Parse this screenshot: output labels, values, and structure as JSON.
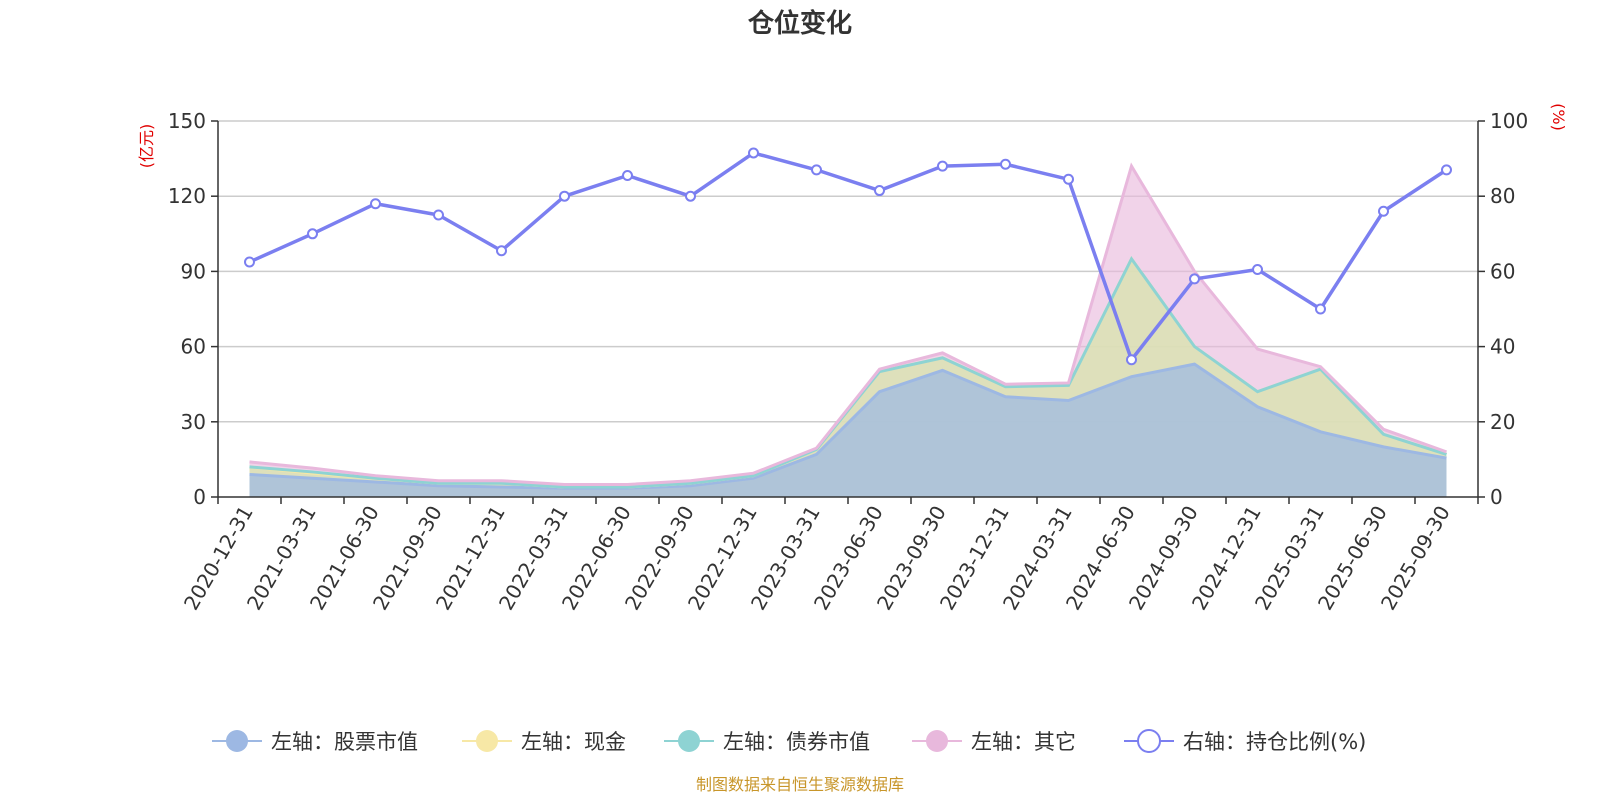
{
  "colors": {
    "stock": "#9db8e3",
    "cash": "#f7e8a6",
    "bond": "#8ed3d3",
    "other": "#e8b8dc",
    "ratio": "#7b7ff0",
    "grid": "#cccccc",
    "axis": "#333333",
    "unit": "#e00000",
    "source": "#c8962a"
  },
  "chart_data": {
    "type": "area",
    "title": "仓位变化",
    "left_unit": "(亿元)",
    "right_unit": "(%)",
    "left_ylim": [
      0,
      150
    ],
    "left_ticks": [
      0,
      30,
      60,
      90,
      120,
      150
    ],
    "right_ylim": [
      0,
      100
    ],
    "right_ticks": [
      0,
      20,
      40,
      60,
      80,
      100
    ],
    "categories": [
      "2020-12-31",
      "2021-03-31",
      "2021-06-30",
      "2021-09-30",
      "2021-12-31",
      "2022-03-31",
      "2022-06-30",
      "2022-09-30",
      "2022-12-31",
      "2023-03-31",
      "2023-06-30",
      "2023-09-30",
      "2023-12-31",
      "2024-03-31",
      "2024-06-30",
      "2024-09-30",
      "2024-12-31",
      "2025-03-31",
      "2025-06-30",
      "2025-09-30"
    ],
    "series": [
      {
        "name": "左轴：股票市值",
        "axis": "left",
        "kind": "stacked-area",
        "values": [
          9,
          7.5,
          6,
          4.5,
          4,
          3.5,
          3.5,
          4.5,
          7.5,
          17,
          42,
          50.5,
          40,
          38.5,
          48,
          53,
          36,
          26,
          20,
          15.5
        ]
      },
      {
        "name": "左轴：现金",
        "axis": "left",
        "kind": "stacked-area",
        "values": [
          3,
          2,
          1.5,
          1,
          1.5,
          0.5,
          0.5,
          1,
          1,
          2,
          8,
          5,
          4,
          6,
          47,
          7,
          6,
          25,
          5,
          1.5
        ]
      },
      {
        "name": "左轴：债券市值",
        "axis": "left",
        "kind": "stacked-area",
        "values": [
          0,
          0.5,
          0,
          0,
          0,
          0,
          0,
          0,
          0,
          0,
          0,
          0,
          0,
          0,
          0,
          0,
          0,
          0,
          0,
          0
        ]
      },
      {
        "name": "左轴：其它",
        "axis": "left",
        "kind": "stacked-area",
        "values": [
          2,
          1.5,
          1,
          1,
          1,
          1,
          1,
          1,
          1,
          0.5,
          1,
          2,
          1,
          1,
          37,
          30,
          17,
          1,
          2,
          1
        ]
      },
      {
        "name": "右轴：持仓比例(%)",
        "axis": "right",
        "kind": "line",
        "values": [
          62.5,
          70,
          78,
          75,
          65.5,
          80,
          85.5,
          80,
          91.5,
          87,
          81.5,
          88,
          88.5,
          84.5,
          36.5,
          58,
          60.5,
          50,
          76,
          87
        ]
      }
    ],
    "source": "制图数据来自恒生聚源数据库"
  }
}
